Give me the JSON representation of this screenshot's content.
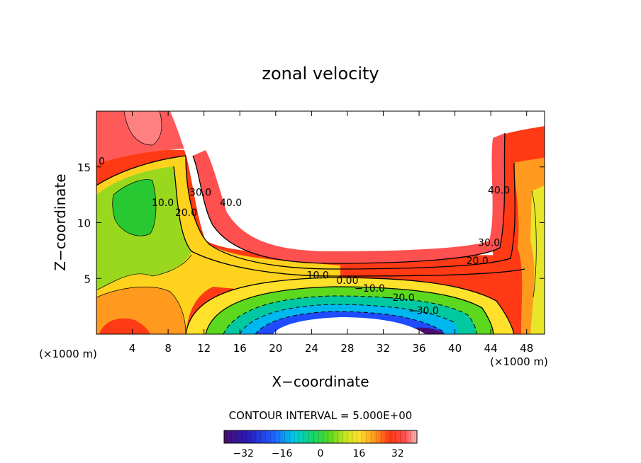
{
  "chart_data": {
    "type": "heatmap",
    "title": "zonal velocity",
    "xlabel": "X−coordinate",
    "ylabel": "Z−coordinate",
    "x_unit": "(×1000 m)",
    "z_unit": "(×1000 m)",
    "xlim": [
      0,
      50
    ],
    "ylim": [
      0,
      20
    ],
    "x_ticks": [
      4,
      8,
      12,
      16,
      20,
      24,
      28,
      32,
      36,
      40,
      44,
      48
    ],
    "y_ticks": [
      5,
      10,
      15
    ],
    "contour_interval_text": "CONTOUR INTERVAL = 5.000E+00",
    "contour_interval": 5.0,
    "contour_labels": [
      {
        "text": "10.0",
        "x": 7.4,
        "y": 11.5
      },
      {
        "text": "20.0",
        "x": 10.0,
        "y": 10.6
      },
      {
        "text": "30.0",
        "x": 11.6,
        "y": 12.4
      },
      {
        "text": "40.0",
        "x": 15.0,
        "y": 11.5
      },
      {
        "text": "40.0",
        "x": 44.9,
        "y": 12.6
      },
      {
        "text": "30.0",
        "x": 43.8,
        "y": 7.9
      },
      {
        "text": "20.0",
        "x": 42.5,
        "y": 6.3
      },
      {
        "text": "10.0",
        "x": 24.7,
        "y": 5.0
      },
      {
        "text": "0.00",
        "x": 28.0,
        "y": 4.5
      },
      {
        "text": "−10.0",
        "x": 30.5,
        "y": 3.8
      },
      {
        "text": "−20.0",
        "x": 33.8,
        "y": 3.0
      },
      {
        "text": "−30.0",
        "x": 36.5,
        "y": 1.8
      },
      {
        "text": "0",
        "x": 0.6,
        "y": 15.2
      }
    ],
    "colorbar": {
      "min": -40,
      "max": 40,
      "ticks": [
        -32,
        -16,
        0,
        16,
        32
      ],
      "tick_labels": [
        "−32",
        "−16",
        "0",
        "16",
        "32"
      ]
    },
    "grid": false
  }
}
